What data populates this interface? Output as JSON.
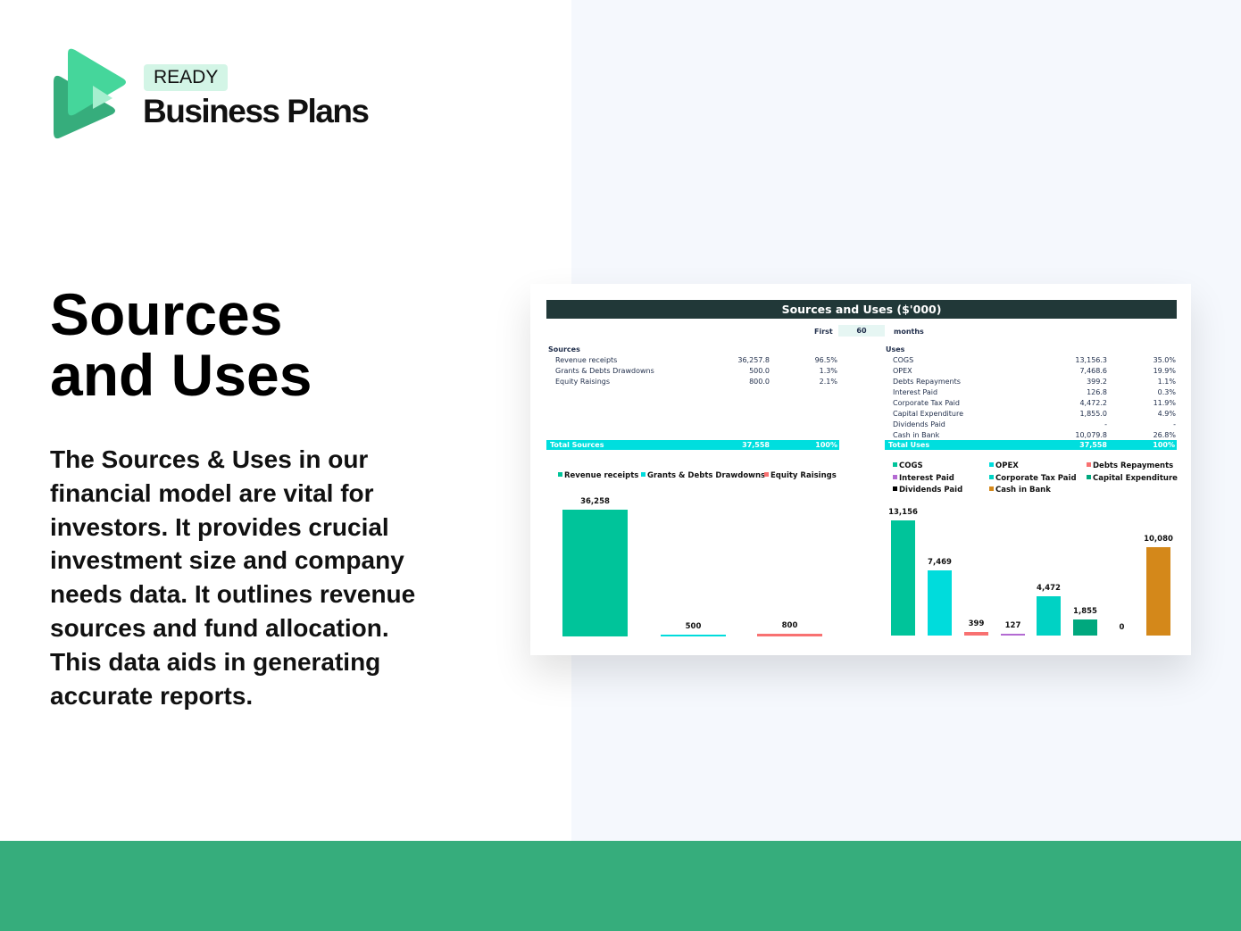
{
  "brand": {
    "badge": "READY",
    "name": "Business Plans",
    "colors": {
      "primary": "#3dd598",
      "dark": "#36ad7c"
    }
  },
  "headline": [
    "Sources",
    "and Uses"
  ],
  "description": "The Sources & Uses in our financial model are vital for investors. It provides crucial investment size and company needs data. It outlines revenue sources and fund allocation. This data aids in generating accurate reports.",
  "sheet": {
    "title": "Sources and Uses ($'000)",
    "period": {
      "prefix": "First",
      "value": "60",
      "suffix": "months"
    },
    "sources": {
      "heading": "Sources",
      "rows": [
        {
          "label": "Revenue receipts",
          "value": "36,257.8",
          "pct": "96.5%"
        },
        {
          "label": "Grants & Debts Drawdowns",
          "value": "500.0",
          "pct": "1.3%"
        },
        {
          "label": "Equity Raisings",
          "value": "800.0",
          "pct": "2.1%"
        }
      ],
      "total": {
        "label": "Total Sources",
        "value": "37,558",
        "pct": "100%"
      }
    },
    "uses": {
      "heading": "Uses",
      "rows": [
        {
          "label": "COGS",
          "value": "13,156.3",
          "pct": "35.0%"
        },
        {
          "label": "OPEX",
          "value": "7,468.6",
          "pct": "19.9%"
        },
        {
          "label": "Debts Repayments",
          "value": "399.2",
          "pct": "1.1%"
        },
        {
          "label": "Interest Paid",
          "value": "126.8",
          "pct": "0.3%"
        },
        {
          "label": "Corporate Tax Paid",
          "value": "4,472.2",
          "pct": "11.9%"
        },
        {
          "label": "Capital Expenditure",
          "value": "1,855.0",
          "pct": "4.9%"
        },
        {
          "label": "Dividends Paid",
          "value": "-",
          "pct": "-"
        },
        {
          "label": "Cash in Bank",
          "value": "10,079.8",
          "pct": "26.8%"
        }
      ],
      "total": {
        "label": "Total Uses",
        "value": "37,558",
        "pct": "100%"
      }
    }
  },
  "chart_data": [
    {
      "type": "bar",
      "legend_position": "top",
      "grid": false,
      "categories": [
        "Revenue receipts",
        "Grants & Debts Drawdowns",
        "Equity Raisings"
      ],
      "values": [
        36258,
        500,
        800
      ],
      "labels": [
        "36,258",
        "500",
        "800"
      ],
      "colors": [
        "#00c49a",
        "#00dcdc",
        "#f87171"
      ]
    },
    {
      "type": "bar",
      "legend_position": "top",
      "grid": false,
      "categories": [
        "COGS",
        "OPEX",
        "Debts Repayments",
        "Interest Paid",
        "Corporate Tax Paid",
        "Capital Expenditure",
        "Dividends Paid",
        "Cash in Bank"
      ],
      "values": [
        13156,
        7469,
        399,
        127,
        4472,
        1855,
        0,
        10080
      ],
      "labels": [
        "13,156",
        "7,469",
        "399",
        "127",
        "4,472",
        "1,855",
        "0",
        "10,080"
      ],
      "colors": [
        "#00c49a",
        "#00dcdc",
        "#f87171",
        "#b36ad2",
        "#00d2c4",
        "#00a87e",
        "#000000",
        "#d4881a"
      ]
    }
  ]
}
